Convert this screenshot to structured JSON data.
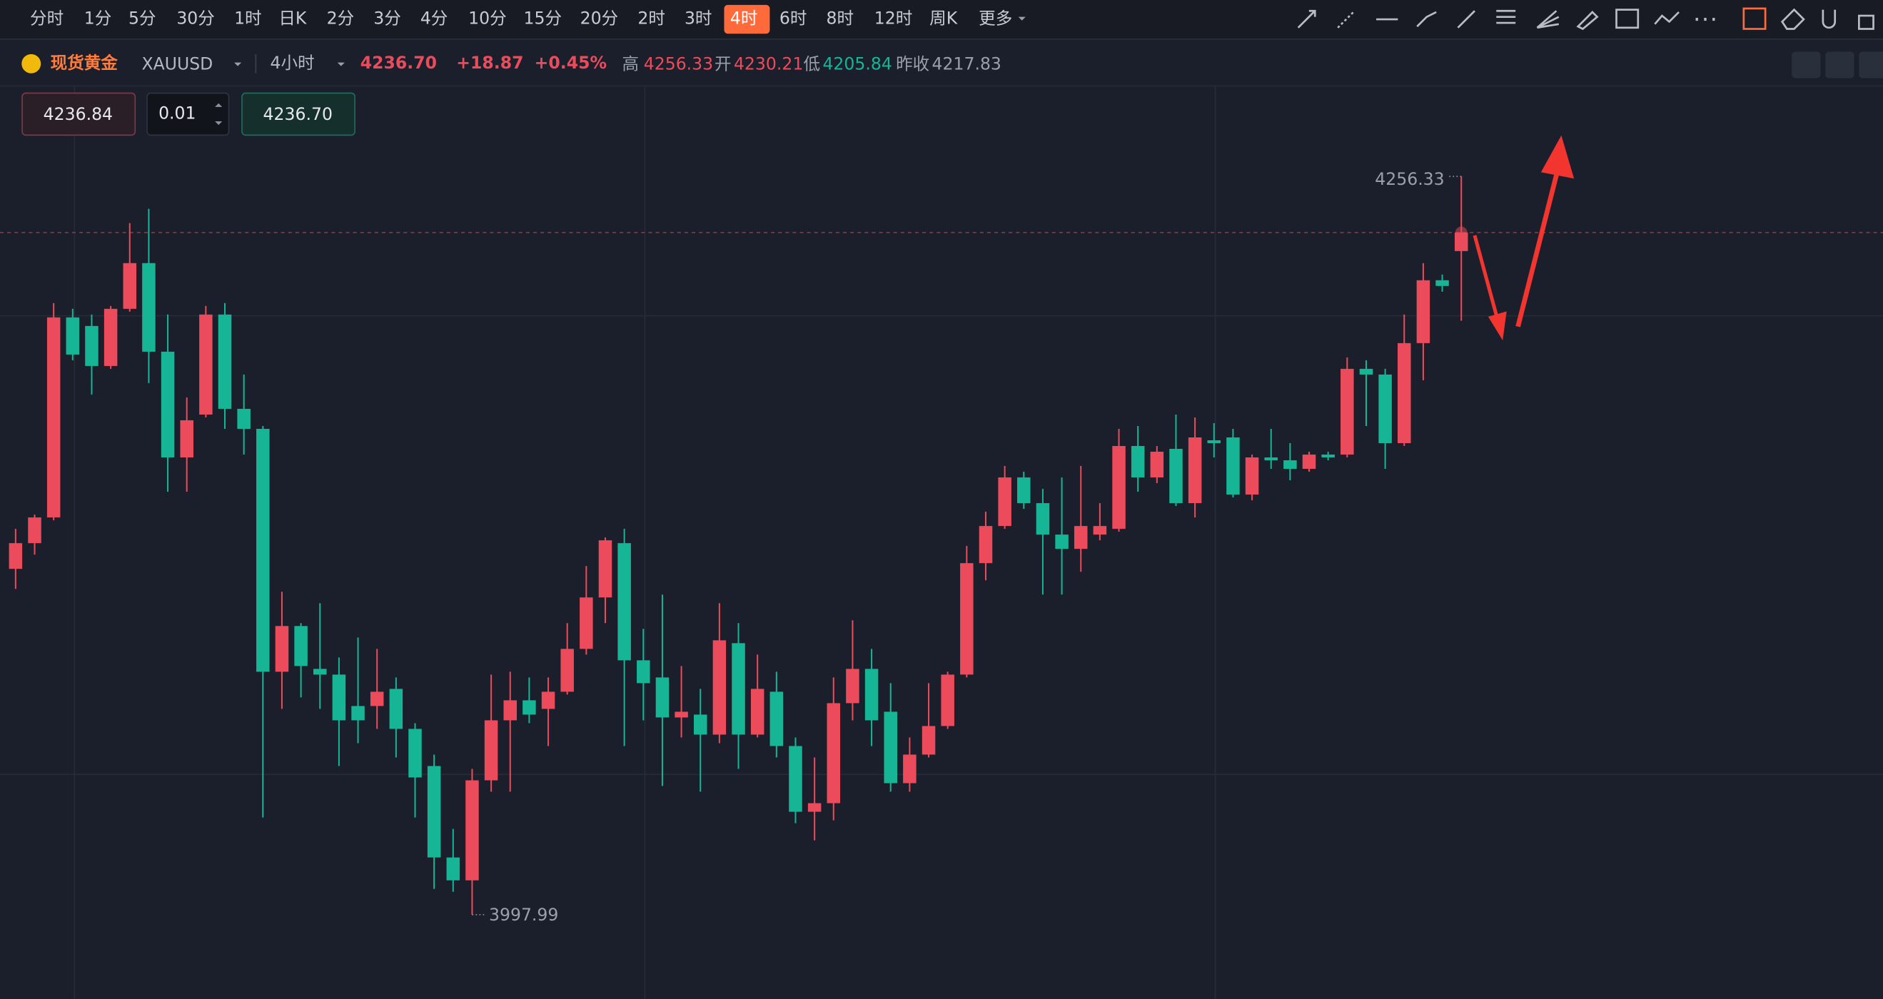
{
  "toolbar": {
    "periods": [
      "分时",
      "1分",
      "5分",
      "30分",
      "1时",
      "日K",
      "2分",
      "3分",
      "4分",
      "10分",
      "15分",
      "20分",
      "2时",
      "3时",
      "4时",
      "6时",
      "8时",
      "12时",
      "周K",
      "更多"
    ],
    "active_period": 14
  },
  "header": {
    "name": "现货黄金",
    "symbol": "XAUUSD",
    "interval": "4小时",
    "price": "4236.70",
    "change": "+18.87",
    "change_pct": "+0.45%",
    "high_label": "高",
    "high": "4256.33",
    "open_label": "开",
    "open": "4230.21",
    "low_label": "低",
    "low": "4205.84",
    "prev_label": "昨收",
    "prev": "4217.83"
  },
  "order": {
    "sell": "4236.84",
    "qty": "0.01",
    "buy": "4236.70"
  },
  "chart_data": {
    "type": "candlestick",
    "up_color": "#eb4b5a",
    "down_color": "#16b596",
    "ylim": [
      3968.5,
      4287.8
    ],
    "last_price": 4236.7,
    "values": [
      [
        4119,
        4133,
        4112,
        4128
      ],
      [
        4128,
        4138,
        4124,
        4137
      ],
      [
        4137,
        4212,
        4136,
        4207
      ],
      [
        4207,
        4210,
        4192,
        4194
      ],
      [
        4204,
        4208,
        4180,
        4190
      ],
      [
        4190,
        4211,
        4189,
        4210
      ],
      [
        4210,
        4240,
        4209,
        4226
      ],
      [
        4226,
        4245,
        4184,
        4195
      ],
      [
        4195,
        4208,
        4146,
        4158
      ],
      [
        4158,
        4179,
        4146,
        4171
      ],
      [
        4173,
        4211,
        4172,
        4208
      ],
      [
        4208,
        4212,
        4168,
        4175
      ],
      [
        4175,
        4187,
        4159,
        4168
      ],
      [
        4168,
        4169,
        4032,
        4083
      ],
      [
        4083,
        4111,
        4070,
        4099
      ],
      [
        4099,
        4100,
        4074,
        4085
      ],
      [
        4084,
        4107,
        4070,
        4082
      ],
      [
        4082,
        4088,
        4050,
        4066
      ],
      [
        4071,
        4095,
        4058,
        4066
      ],
      [
        4071,
        4091,
        4063,
        4076
      ],
      [
        4077,
        4081,
        4053,
        4063
      ],
      [
        4063,
        4065,
        4032,
        4046
      ],
      [
        4050,
        4054,
        4007,
        4018
      ],
      [
        4018,
        4028,
        4006,
        4010
      ],
      [
        4010,
        4049,
        3997.99,
        4045
      ],
      [
        4045,
        4082,
        4041,
        4066
      ],
      [
        4066,
        4083,
        4041,
        4073
      ],
      [
        4073,
        4081,
        4065,
        4068
      ],
      [
        4070,
        4081,
        4057,
        4076
      ],
      [
        4076,
        4100,
        4075,
        4091
      ],
      [
        4091,
        4120,
        4089,
        4109
      ],
      [
        4109,
        4130,
        4100,
        4129
      ],
      [
        4128,
        4133,
        4057,
        4087
      ],
      [
        4087,
        4098,
        4066,
        4079
      ],
      [
        4081,
        4110,
        4043,
        4067
      ],
      [
        4067,
        4085,
        4060,
        4069
      ],
      [
        4068,
        4077,
        4041,
        4061
      ],
      [
        4061,
        4107,
        4058,
        4094
      ],
      [
        4093,
        4100,
        4049,
        4061
      ],
      [
        4061,
        4089,
        4060,
        4077
      ],
      [
        4076,
        4083,
        4053,
        4057
      ],
      [
        4057,
        4060,
        4030,
        4034
      ],
      [
        4034,
        4053,
        4024,
        4037
      ],
      [
        4037,
        4081,
        4031,
        4072
      ],
      [
        4072,
        4101,
        4066,
        4084
      ],
      [
        4084,
        4091,
        4057,
        4066
      ],
      [
        4069,
        4079,
        4041,
        4044
      ],
      [
        4044,
        4060,
        4041,
        4054
      ],
      [
        4054,
        4079,
        4053,
        4064
      ],
      [
        4064,
        4083,
        4063,
        4082
      ],
      [
        4082,
        4127,
        4081,
        4121
      ],
      [
        4121,
        4139,
        4115,
        4134
      ],
      [
        4134,
        4155,
        4133,
        4151
      ],
      [
        4151,
        4153,
        4140,
        4142
      ],
      [
        4142,
        4147,
        4110,
        4131
      ],
      [
        4131,
        4151,
        4110,
        4126
      ],
      [
        4126,
        4155,
        4118,
        4134
      ],
      [
        4131,
        4142,
        4129,
        4134
      ],
      [
        4133,
        4168,
        4132,
        4162
      ],
      [
        4162,
        4169,
        4146,
        4151
      ],
      [
        4151,
        4162,
        4149,
        4160
      ],
      [
        4161,
        4173,
        4141,
        4142
      ],
      [
        4142,
        4172,
        4137,
        4165
      ],
      [
        4164,
        4170,
        4158,
        4163
      ],
      [
        4165,
        4168,
        4144,
        4145
      ],
      [
        4145,
        4159,
        4143,
        4158
      ],
      [
        4158,
        4168,
        4154,
        4157
      ],
      [
        4157,
        4163,
        4150,
        4154
      ],
      [
        4154,
        4160,
        4153,
        4159
      ],
      [
        4159,
        4160,
        4157,
        4158
      ],
      [
        4159,
        4193,
        4158,
        4189
      ],
      [
        4189,
        4192,
        4169,
        4187
      ],
      [
        4187,
        4189,
        4154,
        4163
      ],
      [
        4163,
        4208,
        4162,
        4198
      ],
      [
        4198,
        4226,
        4185,
        4220
      ],
      [
        4220,
        4222,
        4216,
        4218
      ],
      [
        4230.21,
        4256.33,
        4205.84,
        4236.7
      ]
    ]
  }
}
